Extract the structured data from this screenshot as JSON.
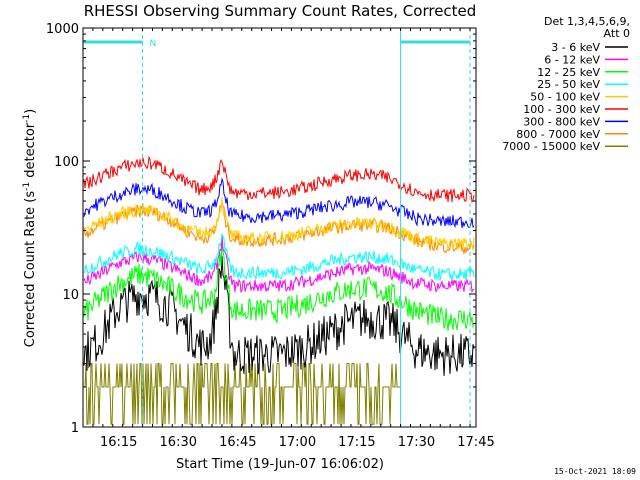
{
  "chart_data": {
    "type": "line",
    "title": "RHESSI Observing Summary Count Rates, Corrected",
    "xlabel": "Start Time (19-Jun-07 16:06:02)",
    "ylabel_prefix": "Corrected Count Rate (s",
    "ylabel_sup1": "-1",
    "ylabel_mid": " detector",
    "ylabel_sup2": "-1",
    "ylabel_suffix": ")",
    "yscale": "log",
    "ylim": [
      1,
      1000
    ],
    "xlim_minutes": [
      0,
      99
    ],
    "x_ticks": [
      {
        "label": "16:15",
        "min": 9
      },
      {
        "label": "16:30",
        "min": 24
      },
      {
        "label": "16:45",
        "min": 39
      },
      {
        "label": "17:00",
        "min": 54
      },
      {
        "label": "17:15",
        "min": 69
      },
      {
        "label": "17:30",
        "min": 84
      },
      {
        "label": "17:45",
        "min": 99
      }
    ],
    "y_ticks": [
      {
        "label": "1",
        "value": 1
      },
      {
        "label": "10",
        "value": 10
      },
      {
        "label": "100",
        "value": 100
      },
      {
        "label": "1000",
        "value": 1000
      }
    ],
    "legend_header": [
      "Det 1,3,4,5,6,9,",
      "Att 0"
    ],
    "night_marker": "N",
    "timestamp": "15-Oct-2021 18:09",
    "series": [
      {
        "name": "3 - 6 keV",
        "color": "#000000",
        "x": [
          0,
          4,
          9,
          14,
          18,
          22,
          25,
          30,
          32,
          33,
          34,
          35,
          36,
          37,
          38,
          40,
          44,
          50,
          56,
          62,
          66,
          70,
          74,
          78,
          80,
          84,
          90,
          99
        ],
        "y": [
          3.5,
          4.5,
          8,
          10,
          9.5,
          8,
          6,
          4,
          4.5,
          6,
          10,
          18,
          10,
          5.5,
          3.5,
          3.5,
          3.5,
          3.5,
          4,
          5,
          6,
          6.5,
          6.5,
          6,
          5,
          3.8,
          3.5,
          3.5
        ]
      },
      {
        "name": "6 - 12 keV",
        "color": "#ff00ff",
        "x": [
          0,
          4,
          9,
          14,
          18,
          22,
          26,
          30,
          33,
          34,
          35,
          36,
          37,
          38,
          42,
          50,
          56,
          62,
          68,
          72,
          76,
          80,
          84,
          90,
          99
        ],
        "y": [
          12,
          14,
          17,
          19,
          18,
          16,
          14,
          12.5,
          14,
          18,
          26,
          18,
          13,
          11.5,
          11.5,
          11.5,
          12.5,
          14,
          15.5,
          15.5,
          15,
          13.5,
          12,
          11.5,
          11.5
        ]
      },
      {
        "name": "12 - 25 keV",
        "color": "#00ff00",
        "x": [
          0,
          4,
          9,
          14,
          18,
          22,
          26,
          30,
          33,
          34,
          35,
          36,
          37,
          38,
          42,
          50,
          56,
          62,
          68,
          72,
          76,
          80,
          84,
          90,
          99
        ],
        "y": [
          7,
          9,
          12,
          14,
          13,
          11,
          9.5,
          8.5,
          9.5,
          14,
          22,
          14,
          9,
          7.5,
          7.5,
          7.5,
          8.5,
          10,
          11,
          11,
          10.5,
          9,
          7.5,
          6.5,
          6.5
        ]
      },
      {
        "name": "25 - 50 keV",
        "color": "#00ffff",
        "x": [
          0,
          4,
          9,
          14,
          18,
          22,
          26,
          30,
          33,
          34,
          35,
          36,
          37,
          38,
          42,
          50,
          56,
          62,
          68,
          72,
          76,
          80,
          84,
          90,
          99
        ],
        "y": [
          15,
          17,
          20,
          22,
          21,
          19,
          17,
          15,
          17,
          21,
          28,
          20,
          16,
          14.5,
          14.5,
          14.5,
          15.5,
          17.5,
          19,
          19,
          18.5,
          17,
          15,
          14,
          14
        ]
      },
      {
        "name": "50 - 100 keV",
        "color": "#ffcc00",
        "x": [
          0,
          4,
          9,
          14,
          18,
          22,
          26,
          30,
          33,
          34,
          35,
          36,
          37,
          38,
          42,
          50,
          56,
          62,
          68,
          72,
          76,
          80,
          84,
          90,
          99
        ],
        "y": [
          30,
          34,
          40,
          43,
          42,
          37,
          31,
          28,
          31,
          38,
          50,
          36,
          29,
          27,
          26,
          27,
          29,
          32,
          34,
          34,
          33,
          30,
          26,
          24,
          24
        ]
      },
      {
        "name": "100 - 300 keV",
        "color": "#ff0000",
        "x": [
          0,
          4,
          9,
          14,
          18,
          22,
          26,
          30,
          33,
          34,
          35,
          36,
          37,
          38,
          42,
          50,
          56,
          62,
          68,
          72,
          76,
          80,
          84,
          90,
          99
        ],
        "y": [
          65,
          75,
          88,
          97,
          95,
          82,
          68,
          60,
          68,
          82,
          105,
          78,
          62,
          58,
          57,
          58,
          63,
          72,
          78,
          79,
          76,
          68,
          58,
          55,
          55
        ]
      },
      {
        "name": "300 - 800 keV",
        "color": "#0000ff",
        "x": [
          0,
          4,
          9,
          14,
          18,
          22,
          26,
          30,
          33,
          34,
          35,
          36,
          37,
          38,
          42,
          50,
          56,
          62,
          68,
          72,
          76,
          80,
          84,
          90,
          99
        ],
        "y": [
          42,
          48,
          56,
          62,
          60,
          52,
          44,
          40,
          44,
          54,
          68,
          50,
          41,
          39,
          38,
          39,
          42,
          46,
          49,
          49,
          47,
          42,
          37,
          35,
          35
        ]
      },
      {
        "name": "800 - 7000 keV",
        "color": "#ff8800",
        "x": [
          0,
          4,
          9,
          14,
          18,
          22,
          26,
          30,
          33,
          34,
          35,
          36,
          37,
          38,
          42,
          50,
          56,
          62,
          68,
          72,
          76,
          80,
          84,
          90,
          99
        ],
        "y": [
          28,
          32,
          38,
          42,
          41,
          36,
          30,
          26,
          29,
          37,
          48,
          35,
          28,
          26,
          25,
          26,
          28,
          31,
          33,
          33,
          32,
          29,
          25,
          23,
          22
        ]
      },
      {
        "name": "7000 - 15000 keV",
        "color": "#808000",
        "x": [
          0,
          4,
          9,
          14,
          18,
          22,
          26,
          30,
          33,
          34,
          35,
          36,
          37,
          38,
          42,
          50,
          56,
          62,
          68,
          72,
          76,
          80,
          84,
          90,
          99
        ],
        "y": [
          2,
          2,
          3,
          3,
          3,
          3,
          2,
          2,
          2,
          3,
          3,
          2,
          2,
          2,
          2,
          2,
          2,
          2,
          2,
          2,
          2,
          2,
          null,
          null,
          null
        ]
      }
    ]
  }
}
